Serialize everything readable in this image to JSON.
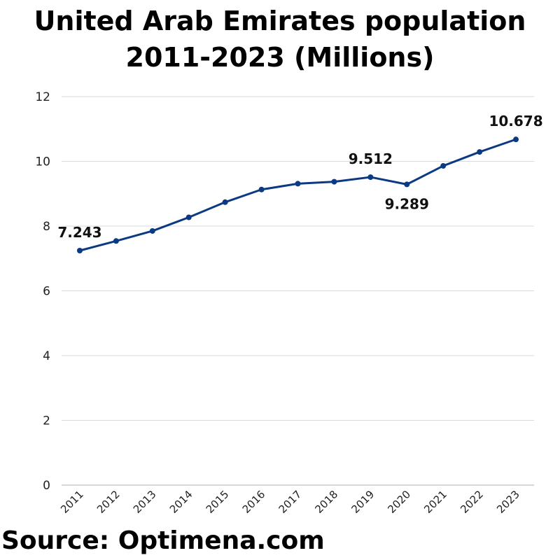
{
  "chart_data": {
    "type": "line",
    "title": "United Arab Emirates population 2011-2023 (Millions)",
    "categories": [
      "2011",
      "2012",
      "2013",
      "2014",
      "2015",
      "2016",
      "2017",
      "2018",
      "2019",
      "2020",
      "2021",
      "2022",
      "2023"
    ],
    "series": [
      {
        "values": [
          7.243,
          7.54,
          7.85,
          8.27,
          8.74,
          9.13,
          9.31,
          9.37,
          9.512,
          9.289,
          9.86,
          10.29,
          10.678
        ]
      }
    ],
    "data_labels": [
      {
        "index": 0,
        "text": "7.243",
        "position": "above"
      },
      {
        "index": 8,
        "text": "9.512",
        "position": "above"
      },
      {
        "index": 9,
        "text": "9.289",
        "position": "below"
      },
      {
        "index": 12,
        "text": "10.678",
        "position": "above"
      }
    ],
    "ylim": [
      0,
      12
    ],
    "yticks": [
      0,
      2,
      4,
      6,
      8,
      10,
      12
    ],
    "xlabel": "",
    "ylabel": "",
    "grid": "horizontal",
    "legend": "none",
    "line_color": "#0b3a82"
  },
  "footer": {
    "source": "Source: Optimena.com"
  }
}
